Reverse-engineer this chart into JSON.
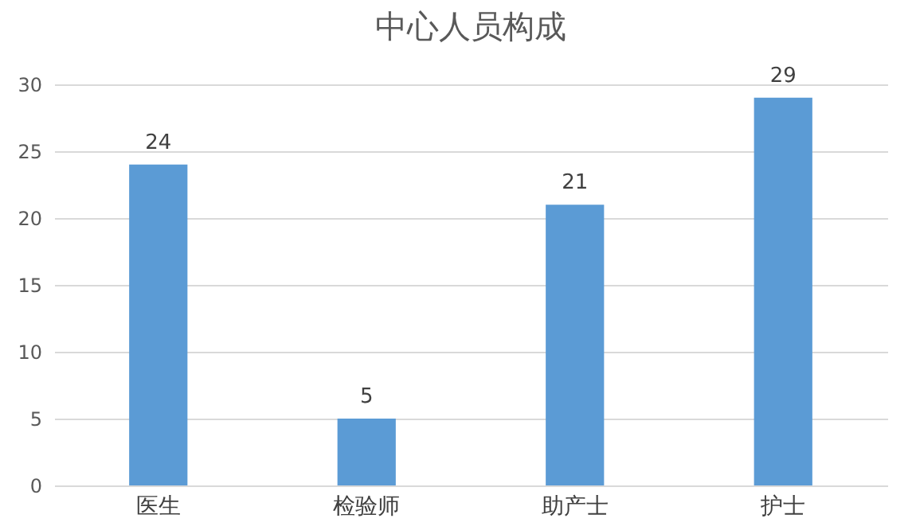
{
  "chart_data": {
    "type": "bar",
    "title": "中心人员构成",
    "categories": [
      "医生",
      "检验师",
      "助产士",
      "护士"
    ],
    "values": [
      24,
      5,
      21,
      29
    ],
    "color": "#5b9bd5",
    "data_labels": true,
    "ylim": [
      0,
      30
    ],
    "yticks": [
      0,
      5,
      10,
      15,
      20,
      25,
      30
    ],
    "grid": "y"
  }
}
